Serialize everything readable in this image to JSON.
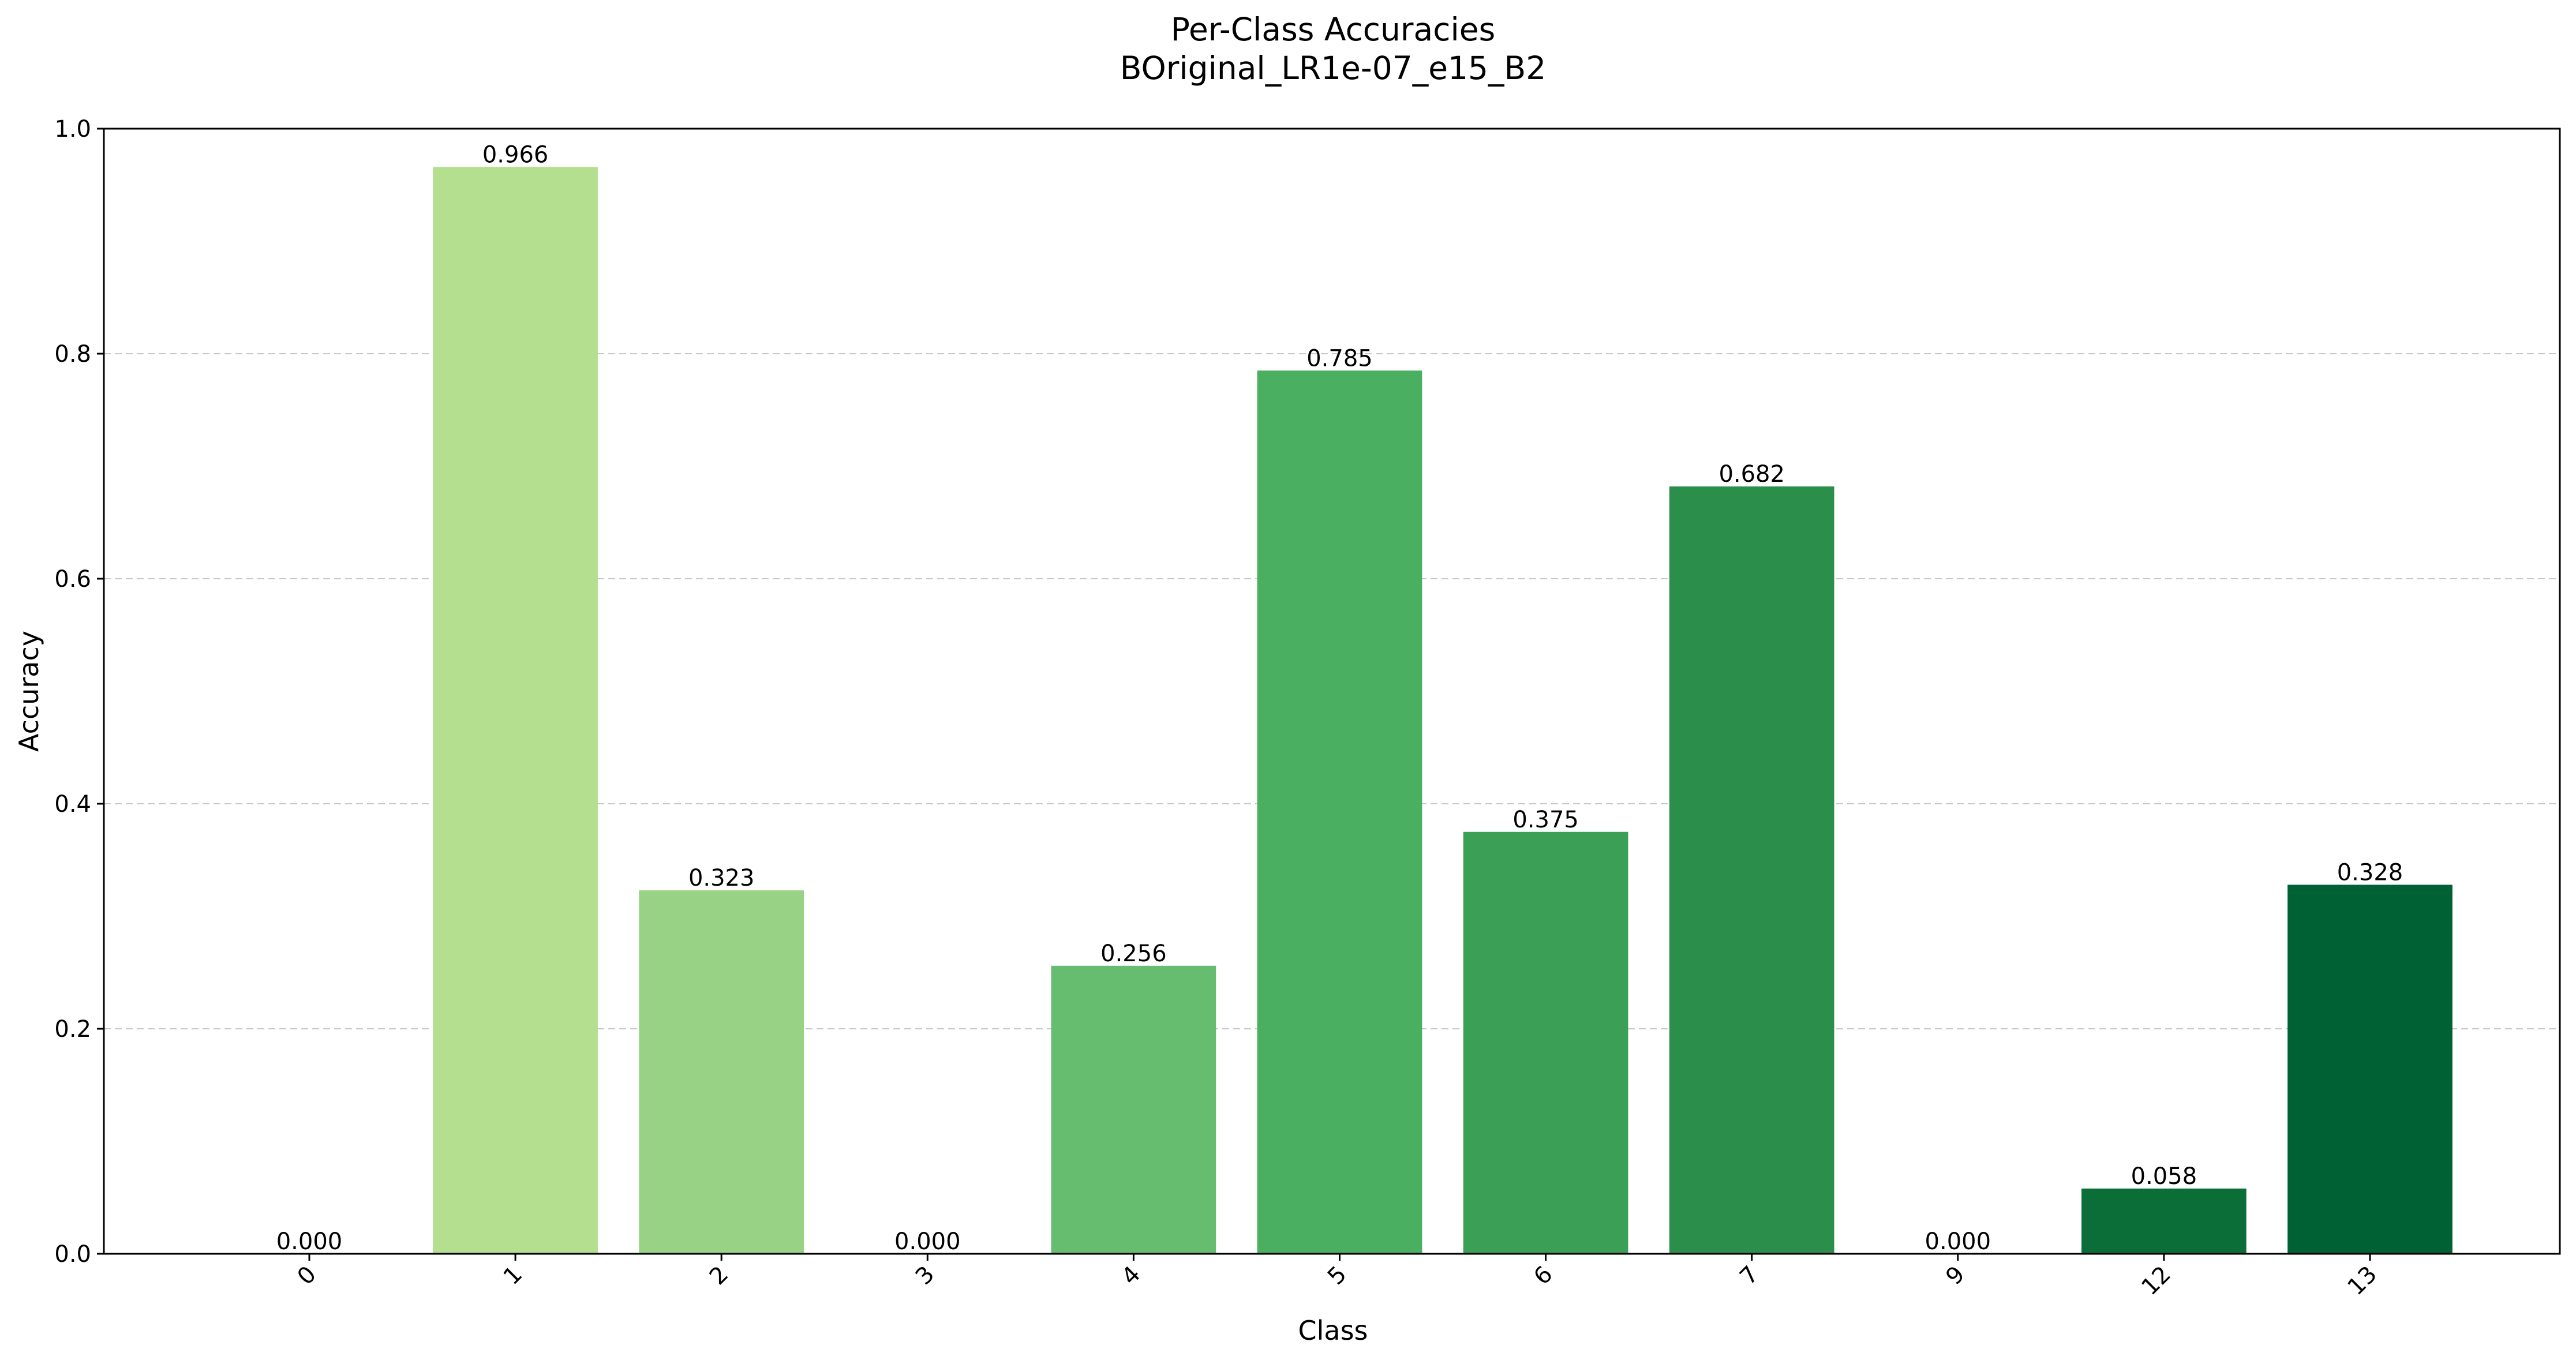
{
  "chart_data": {
    "type": "bar",
    "title": "Per-Class Accuracies",
    "subtitle": "BOriginal_LR1e-07_e15_B2",
    "xlabel": "Class",
    "ylabel": "Accuracy",
    "ylim": [
      0,
      1.0
    ],
    "yticks": [
      "0.0",
      "0.2",
      "0.4",
      "0.6",
      "0.8",
      "1.0"
    ],
    "grid": "horizontal dashed",
    "categories": [
      "0",
      "1",
      "2",
      "3",
      "4",
      "5",
      "6",
      "7",
      "9",
      "12",
      "13"
    ],
    "values": [
      0.0,
      0.966,
      0.323,
      0.0,
      0.256,
      0.785,
      0.375,
      0.682,
      0.0,
      0.058,
      0.328
    ],
    "value_labels": [
      "0.000",
      "0.966",
      "0.323",
      "0.000",
      "0.256",
      "0.785",
      "0.375",
      "0.682",
      "0.000",
      "0.058",
      "0.328"
    ],
    "colors": [
      "#d9f0a3",
      "#b3df8f",
      "#98d385",
      "#7fc77a",
      "#66bd70",
      "#4aaf60",
      "#3b9f55",
      "#2b8e4b",
      "#1a7d41",
      "#0b6e38",
      "#006134"
    ],
    "tick_rotation": "45deg"
  }
}
